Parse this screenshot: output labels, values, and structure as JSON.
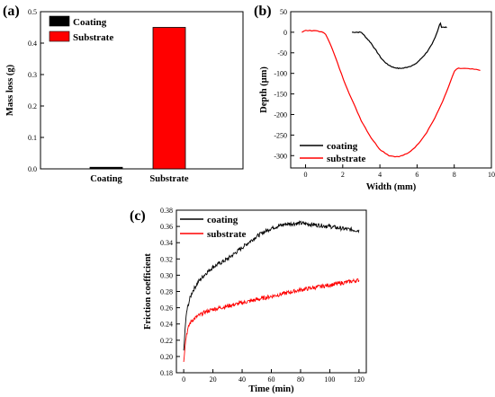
{
  "panels": [
    {
      "label": "(a)",
      "chart_data": {
        "type": "bar",
        "ylabel": "Mass loss (g)",
        "ylim": [
          0,
          0.5
        ],
        "yticks": [
          "0.0",
          "0.1",
          "0.2",
          "0.3",
          "0.4",
          "0.5"
        ],
        "categories": [
          "Coating",
          "Substrate"
        ],
        "values": [
          0.005,
          0.45
        ],
        "colors": [
          "#000000",
          "#ff0000"
        ],
        "legend": [
          "Coating",
          "Substrate"
        ],
        "legend_position": "top-left"
      }
    },
    {
      "label": "(b)",
      "chart_data": {
        "type": "line",
        "xlabel": "Width (mm)",
        "ylabel": "Depth (μm)",
        "xlim": [
          -0.8,
          10
        ],
        "ylim": [
          -330,
          50
        ],
        "xticks": [
          "0",
          "2",
          "4",
          "6",
          "8",
          "10"
        ],
        "yticks": [
          "50",
          "0",
          "-50",
          "-100",
          "-150",
          "-200",
          "-250",
          "-300"
        ],
        "legend_position": "bottom-left",
        "series": [
          {
            "name": "coating",
            "color": "#000000",
            "x": [
              2.5,
              3.0,
              3.2,
              3.5,
              3.8,
              4.1,
              4.4,
              4.7,
              5.0,
              5.3,
              5.6,
              5.9,
              6.2,
              6.5,
              6.8,
              7.0,
              7.15,
              7.25,
              7.3,
              7.6
            ],
            "y": [
              0,
              0,
              -10,
              -25,
              -45,
              -65,
              -78,
              -85,
              -88,
              -87,
              -83,
              -78,
              -65,
              -50,
              -30,
              -10,
              10,
              25,
              12,
              12
            ]
          },
          {
            "name": "substrate",
            "color": "#ff0000",
            "x": [
              -0.2,
              0.0,
              0.3,
              0.6,
              0.9,
              1.1,
              1.3,
              1.6,
              2.0,
              2.5,
              3.0,
              3.5,
              4.0,
              4.5,
              5.0,
              5.5,
              6.0,
              6.5,
              7.0,
              7.5,
              7.8,
              8.0,
              8.2,
              8.5,
              9.0,
              9.4
            ],
            "y": [
              0,
              5,
              3,
              4,
              0,
              -5,
              -25,
              -60,
              -110,
              -165,
              -215,
              -255,
              -285,
              -300,
              -303,
              -295,
              -275,
              -245,
              -205,
              -155,
              -120,
              -95,
              -88,
              -88,
              -90,
              -92
            ]
          }
        ]
      }
    },
    {
      "label": "(c)",
      "chart_data": {
        "type": "line",
        "xlabel": "Time (min)",
        "ylabel": "Friction coefficient",
        "xlim": [
          -5,
          125
        ],
        "ylim": [
          0.18,
          0.38
        ],
        "xticks": [
          "0",
          "20",
          "40",
          "60",
          "80",
          "100",
          "120"
        ],
        "yticks": [
          "0.18",
          "0.20",
          "0.22",
          "0.24",
          "0.26",
          "0.28",
          "0.30",
          "0.32",
          "0.34",
          "0.36",
          "0.38"
        ],
        "legend_position": "top-left",
        "series": [
          {
            "name": "coating",
            "color": "#000000",
            "x": [
              0,
              1,
              2,
              4,
              6,
              10,
              15,
              20,
              30,
              40,
              50,
              60,
              70,
              80,
              90,
              100,
              110,
              120
            ],
            "y": [
              0.205,
              0.235,
              0.255,
              0.27,
              0.28,
              0.292,
              0.302,
              0.31,
              0.32,
              0.334,
              0.348,
              0.358,
              0.363,
              0.364,
              0.362,
              0.36,
              0.357,
              0.355
            ]
          },
          {
            "name": "substrate",
            "color": "#ff0000",
            "x": [
              0,
              1,
              2,
              4,
              6,
              10,
              15,
              20,
              30,
              40,
              50,
              60,
              70,
              80,
              90,
              100,
              110,
              120
            ],
            "y": [
              0.195,
              0.215,
              0.228,
              0.24,
              0.245,
              0.25,
              0.255,
              0.258,
              0.262,
              0.266,
              0.27,
              0.274,
              0.278,
              0.282,
              0.285,
              0.288,
              0.291,
              0.294
            ]
          }
        ]
      }
    }
  ]
}
